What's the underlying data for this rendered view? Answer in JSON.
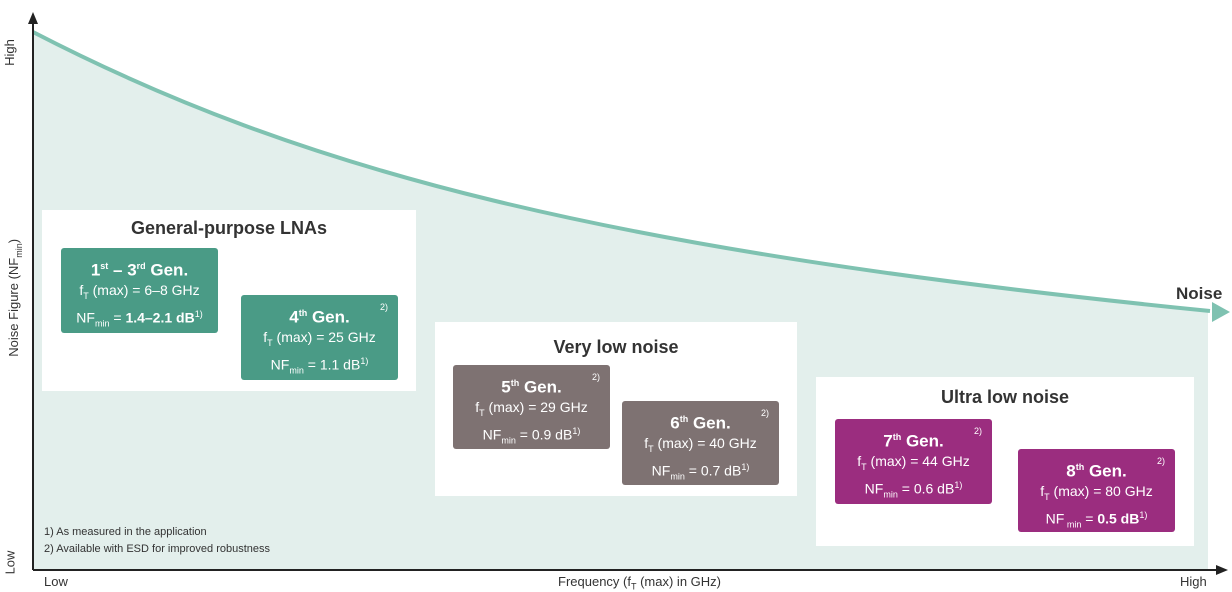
{
  "axes": {
    "y_title": "Noise Figure (NF",
    "y_title_sub": "min",
    "y_title_close": ")",
    "y_low": "Low",
    "y_high": "High",
    "x_title": "Frequency (f",
    "x_title_sub": "T",
    "x_title_close": " (max) in GHz)",
    "x_low": "Low",
    "x_high": "High"
  },
  "curve_label": "Noise",
  "colors": {
    "curve": "#7fc2b1",
    "area": "#e3efec",
    "teal": "#4a9b86",
    "grey": "#7e7272",
    "purple": "#9b2d7f"
  },
  "groups": [
    {
      "title": "General-purpose LNAs"
    },
    {
      "title": "Very low noise"
    },
    {
      "title": "Ultra low noise"
    }
  ],
  "generations": [
    {
      "num": "1",
      "sup": "st",
      "dash": " – 3",
      "sup2": "rd",
      "label": " Gen.",
      "ft_prefix": "f",
      "ft_sub": "T",
      "ft_text": " (max) = 6–8 GHz",
      "nf_prefix": "NF",
      "nf_sub": "min",
      "nf_eq": " = ",
      "nf_value": "1.4–2.1 dB",
      "nf_sup": "1)",
      "note": ""
    },
    {
      "num": "4",
      "sup": "th",
      "label": " Gen.",
      "ft_prefix": "f",
      "ft_sub": "T",
      "ft_text": " (max) = 25 GHz",
      "nf_prefix": "NF",
      "nf_sub": "min",
      "nf_eq": " = ",
      "nf_value": "1.1 dB",
      "nf_sup": "1)",
      "note": "2)"
    },
    {
      "num": "5",
      "sup": "th",
      "label": " Gen.",
      "ft_prefix": "f",
      "ft_sub": "T",
      "ft_text": " (max) = 29 GHz",
      "nf_prefix": "NF",
      "nf_sub": "min",
      "nf_eq": " = ",
      "nf_value": "0.9 dB",
      "nf_sup": "1)",
      "note": "2)"
    },
    {
      "num": "6",
      "sup": "th",
      "label": " Gen.",
      "ft_prefix": "f",
      "ft_sub": "T",
      "ft_text": " (max) = 40 GHz",
      "nf_prefix": "NF",
      "nf_sub": "min",
      "nf_eq": " = ",
      "nf_value": "0.7 dB",
      "nf_sup": "1)",
      "note": "2)"
    },
    {
      "num": "7",
      "sup": "th",
      "label": " Gen.",
      "ft_prefix": "f",
      "ft_sub": "T",
      "ft_text": " (max) = 44 GHz",
      "nf_prefix": "NF",
      "nf_sub": "min",
      "nf_eq": " = ",
      "nf_value": "0.6 dB",
      "nf_sup": "1)",
      "note": "2)"
    },
    {
      "num": "8",
      "sup": "th",
      "label": " Gen.",
      "ft_prefix": "f",
      "ft_sub": "T",
      "ft_text": " (max) = 80 GHz",
      "nf_prefix": "NF",
      "nf_sub": " min",
      "nf_eq": " = ",
      "nf_value": "0.5 dB",
      "nf_sup": "1)",
      "note": "2)"
    }
  ],
  "footnotes": [
    "1) As measured in the application",
    "2) Available with ESD for improved robustness"
  ]
}
